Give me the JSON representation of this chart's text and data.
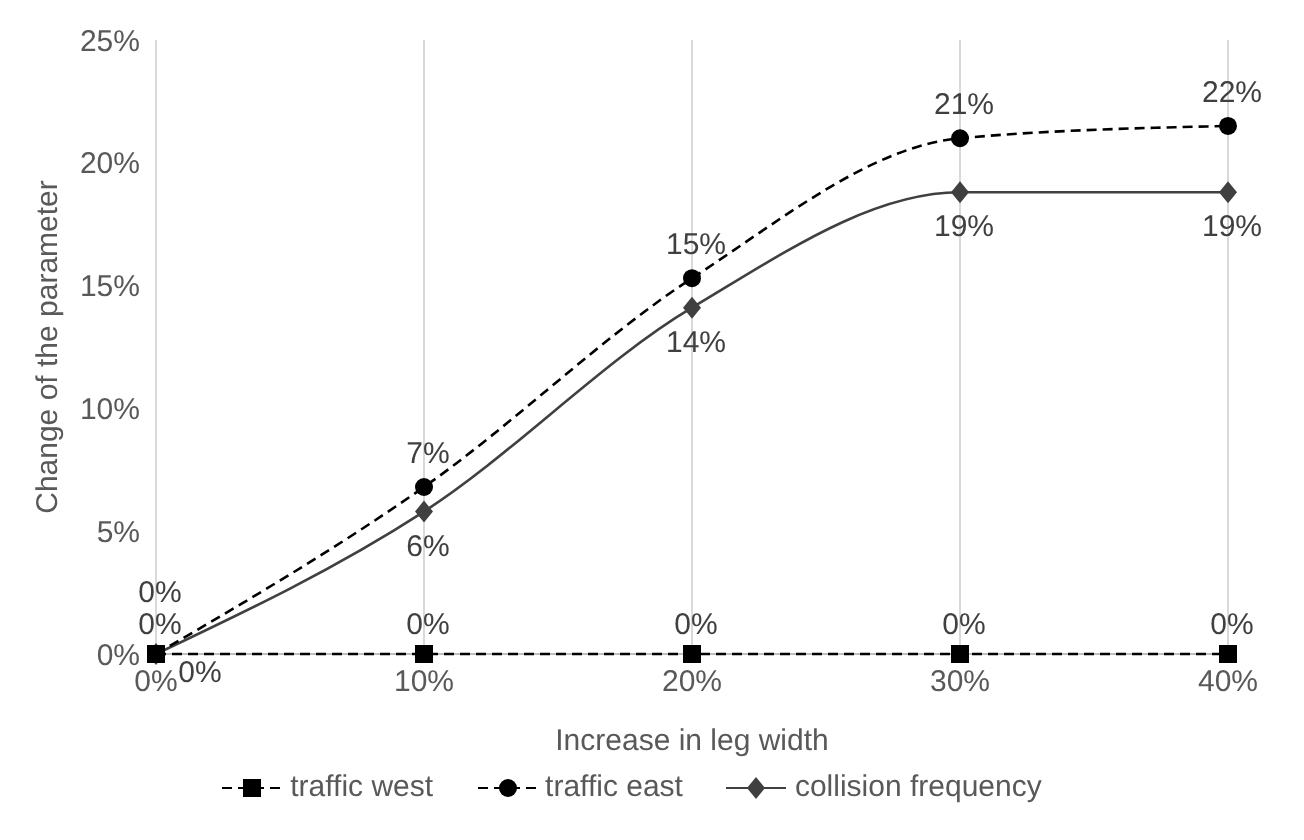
{
  "chart_data": {
    "type": "line",
    "xlabel": "Increase in leg width",
    "ylabel": "Change of the parameter",
    "x": [
      0,
      10,
      20,
      30,
      40
    ],
    "xlim": [
      0,
      40
    ],
    "xticks": [
      {
        "value": 0,
        "label": "0%"
      },
      {
        "value": 10,
        "label": "10%"
      },
      {
        "value": 20,
        "label": "20%"
      },
      {
        "value": 30,
        "label": "30%"
      },
      {
        "value": 40,
        "label": "40%"
      }
    ],
    "ylim": [
      0,
      25
    ],
    "yticks": [
      {
        "value": 0,
        "label": "0%"
      },
      {
        "value": 5,
        "label": "5%"
      },
      {
        "value": 10,
        "label": "10%"
      },
      {
        "value": 15,
        "label": "15%"
      },
      {
        "value": 20,
        "label": "20%"
      },
      {
        "value": 25,
        "label": "25%"
      }
    ],
    "grid": "x",
    "legend": "bottom",
    "series": [
      {
        "name": "traffic west",
        "color": "#000000",
        "marker": "square",
        "line_style": "dashed",
        "values": [
          0,
          0,
          0,
          0,
          0
        ],
        "value_labels": [
          "0%",
          "0%",
          "0%",
          "0%",
          "0%"
        ]
      },
      {
        "name": "traffic east",
        "color": "#000000",
        "marker": "circle",
        "line_style": "dashed",
        "values": [
          0,
          6.8,
          15.3,
          21,
          21.5
        ],
        "value_labels": [
          "0%",
          "7%",
          "15%",
          "21%",
          "22%"
        ]
      },
      {
        "name": "collision frequency",
        "color": "#404040",
        "marker": "diamond",
        "line_style": "solid",
        "values": [
          0,
          5.8,
          14.1,
          18.8,
          18.8
        ],
        "value_labels": [
          "0%",
          "6%",
          "14%",
          "19%",
          "19%"
        ]
      }
    ]
  }
}
